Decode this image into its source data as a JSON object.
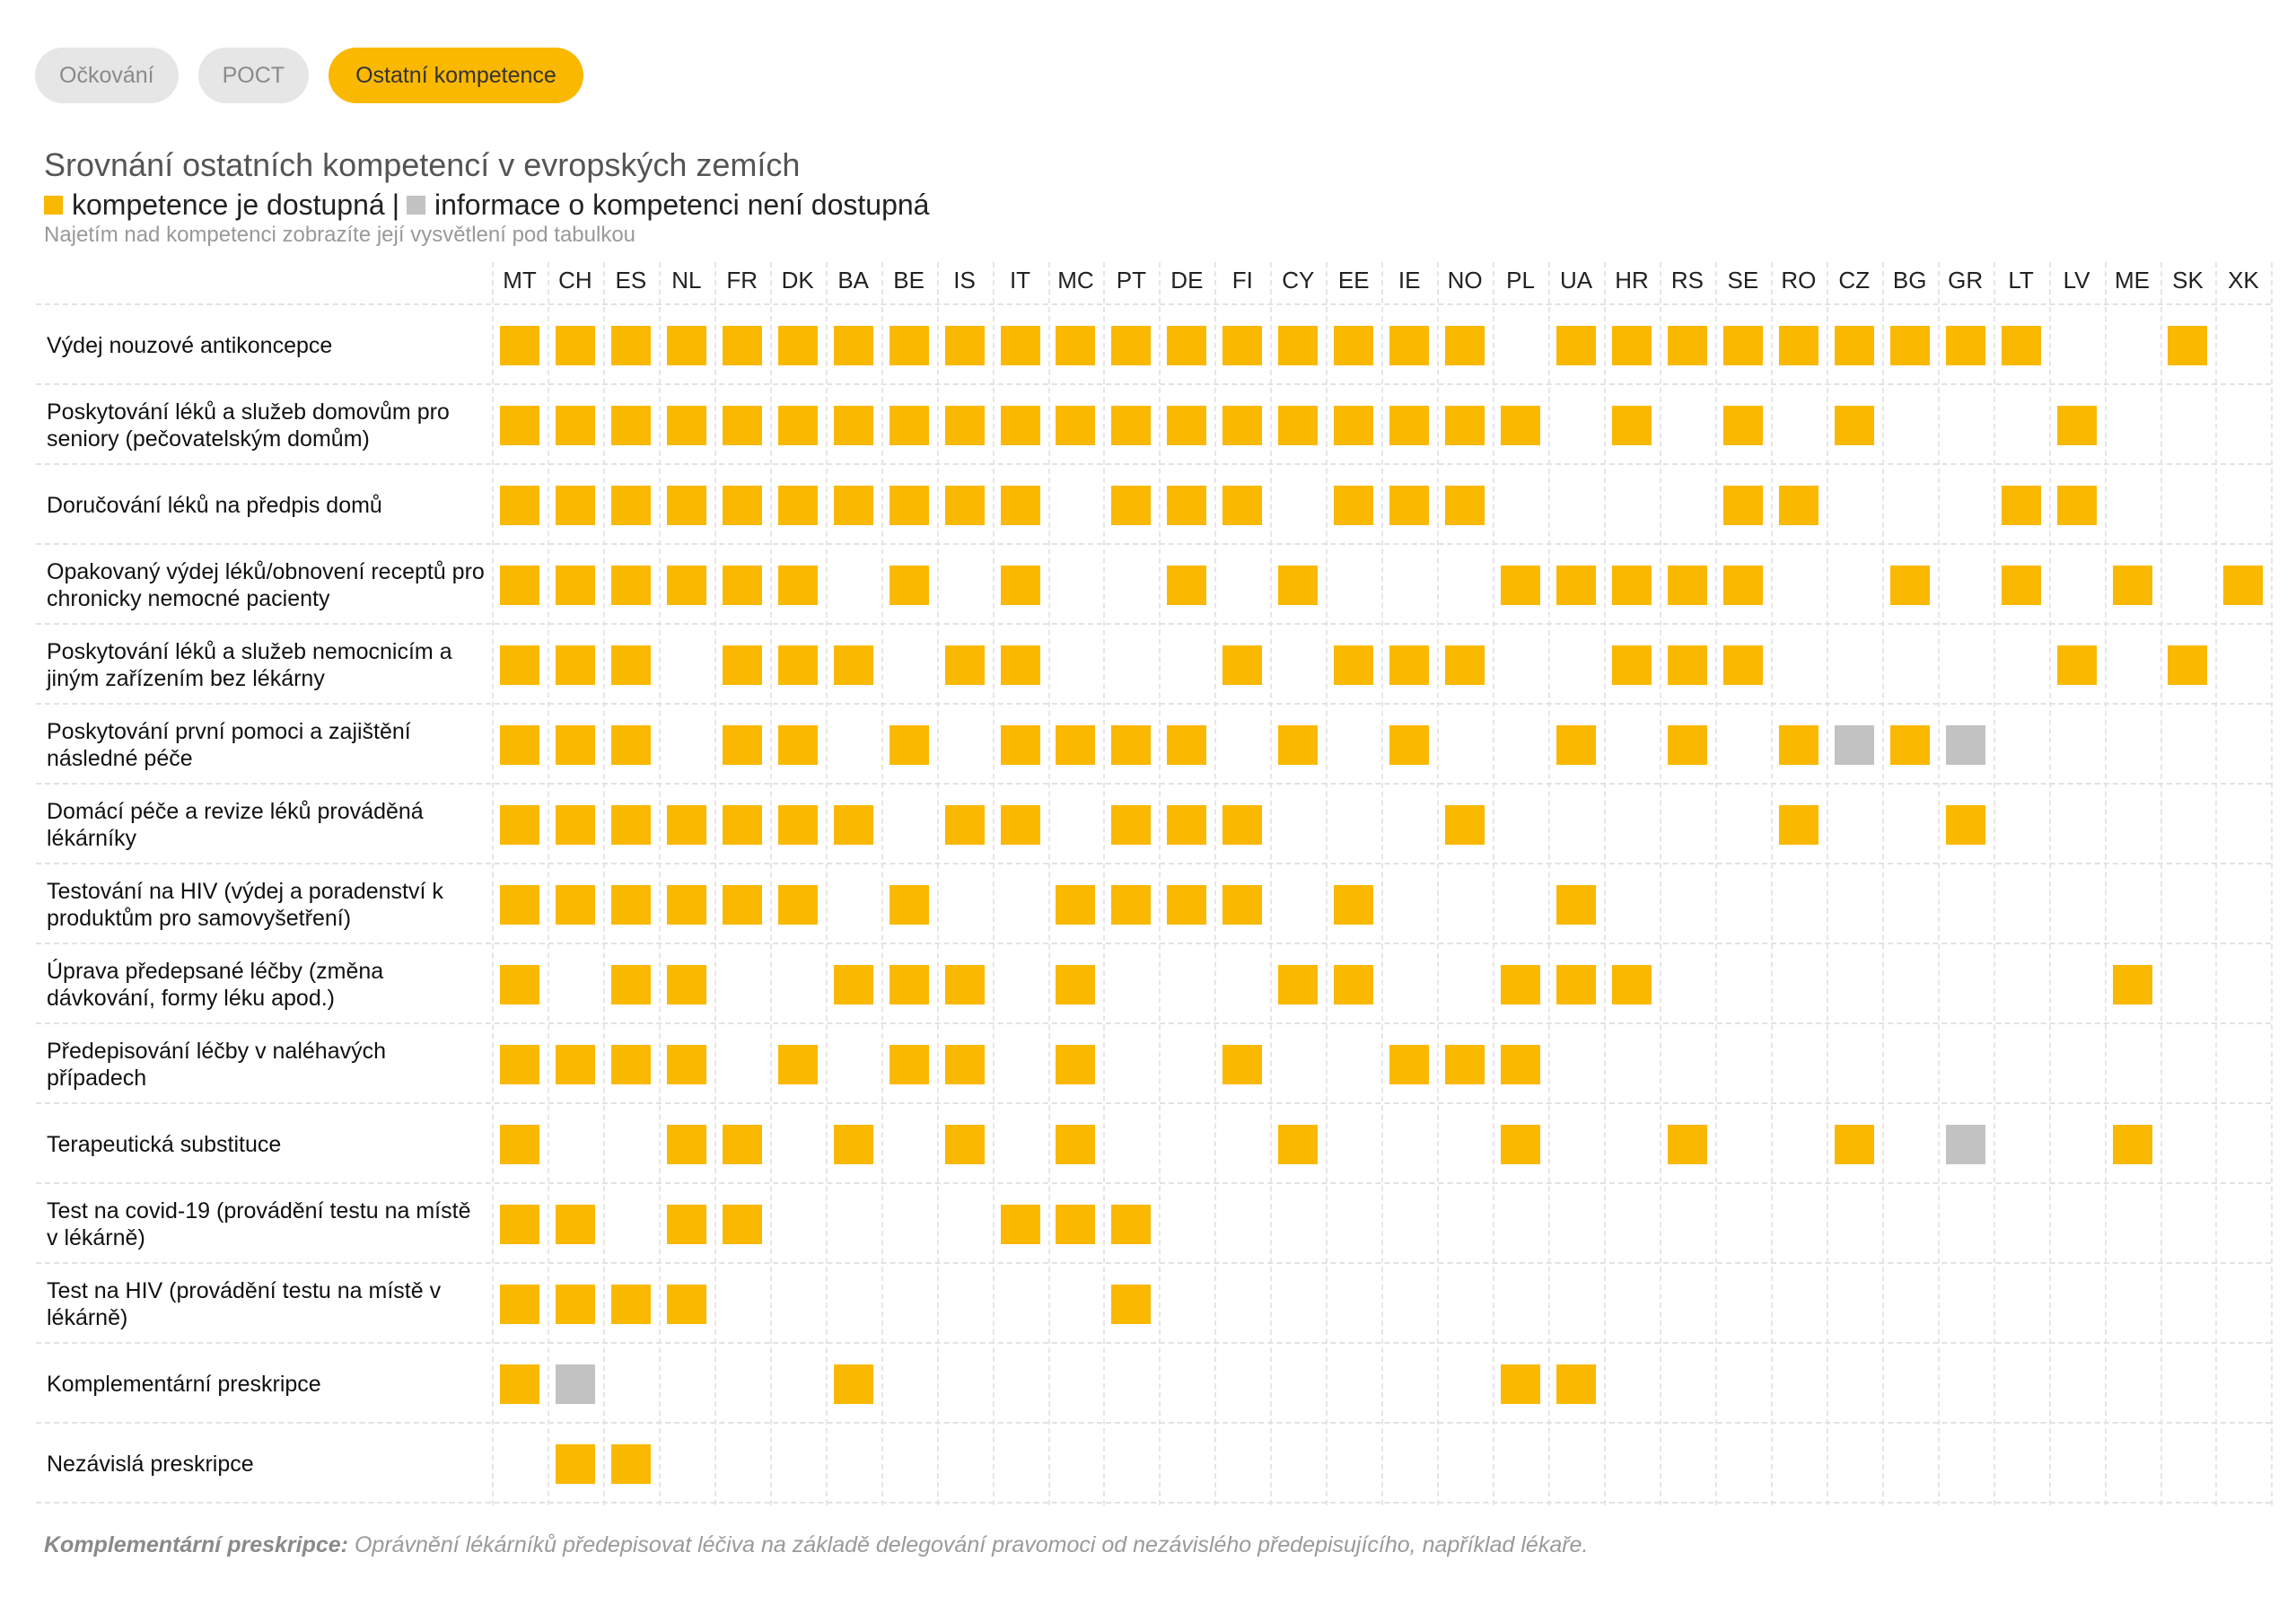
{
  "tabs": [
    {
      "label": "Očkování",
      "active": false
    },
    {
      "label": "POCT",
      "active": false
    },
    {
      "label": "Ostatní kompetence",
      "active": true
    }
  ],
  "title": "Srovnání ostatních kompetencí v evropských zemích",
  "legend": {
    "available": "kompetence je dostupná",
    "separator": "|",
    "unavailable": "informace o kompetenci není dostupná"
  },
  "hint": "Najetím nad kompetenci zobrazíte její vysvětlení pod tabulkou",
  "colors": {
    "available": "#fbb800",
    "unavailable": "#c2c2c2"
  },
  "countries": [
    "MT",
    "CH",
    "ES",
    "NL",
    "FR",
    "DK",
    "BA",
    "BE",
    "IS",
    "IT",
    "MC",
    "PT",
    "DE",
    "FI",
    "CY",
    "EE",
    "IE",
    "NO",
    "PL",
    "UA",
    "HR",
    "RS",
    "SE",
    "RO",
    "CZ",
    "BG",
    "GR",
    "LT",
    "LV",
    "ME",
    "SK",
    "XK"
  ],
  "rows": [
    {
      "label": "Výdej nouzové antikoncepce",
      "cells": "YYYYYYYYYYYYYYYYYY.YYYYYYYYY..Y."
    },
    {
      "label": "Poskytování léků a služeb domovům pro seniory (pečovatelským domům)",
      "cells": "YYYYYYYYYYYYYYYYYYY.Y.Y.Y...Y..."
    },
    {
      "label": "Doručování léků na předpis domů",
      "cells": "YYYYYYYYYY.YYY.YYY....YY...YY..."
    },
    {
      "label": "Opakovaný výdej léků/obnovení receptů pro chronicky nemocné pacienty",
      "cells": "YYYYYY.Y.Y..Y.Y...YYYYY..Y.Y.Y.Y"
    },
    {
      "label": "Poskytování léků a služeb nemocnicím a jiným zařízením bez lékárny",
      "cells": "YYY.YYY.YY...Y.YYY..YYY.....Y.Y."
    },
    {
      "label": "Poskytování první pomoci a zajištění následné péče",
      "cells": "YYY.YY.Y.YYYY.Y.Y..Y.Y.YNYN....."
    },
    {
      "label": "Domácí péče a revize léků prováděná lékárníky",
      "cells": "YYYYYYY.YY.YYY...Y.....Y..Y....."
    },
    {
      "label": "Testování na HIV (výdej a poradenství k produktům pro samovyšetření)",
      "cells": "YYYYYY.Y..YYYY.Y...Y............"
    },
    {
      "label": "Úprava předepsané léčby (změna dávkování, formy léku apod.)",
      "cells": "Y.YY..YYY.Y...YY..YYY........Y.."
    },
    {
      "label": "Předepisování léčby v naléhavých případech",
      "cells": "YYYY.Y.YY.Y..Y..YYY............."
    },
    {
      "label": "Terapeutická substituce",
      "cells": "Y..YY.Y.Y.Y...Y...Y..Y..Y.N..Y.."
    },
    {
      "label": "Test na covid-19 (provádění testu na místě v lékárně)",
      "cells": "YY.YY....YYY...................."
    },
    {
      "label": "Test na HIV (provádění testu na místě v lékárně)",
      "cells": "YYYY.......Y...................."
    },
    {
      "label": "Komplementární preskripce",
      "cells": "YN....Y...........YY............"
    },
    {
      "label": "Nezávislá preskripce",
      "cells": ".YY............................."
    }
  ],
  "footnote": {
    "term": "Komplementární preskripce:",
    "text": "Oprávnění lékárníků předepisovat léčiva na základě delegování pravomoci od nezávislého předepisujícího, například lékaře."
  }
}
